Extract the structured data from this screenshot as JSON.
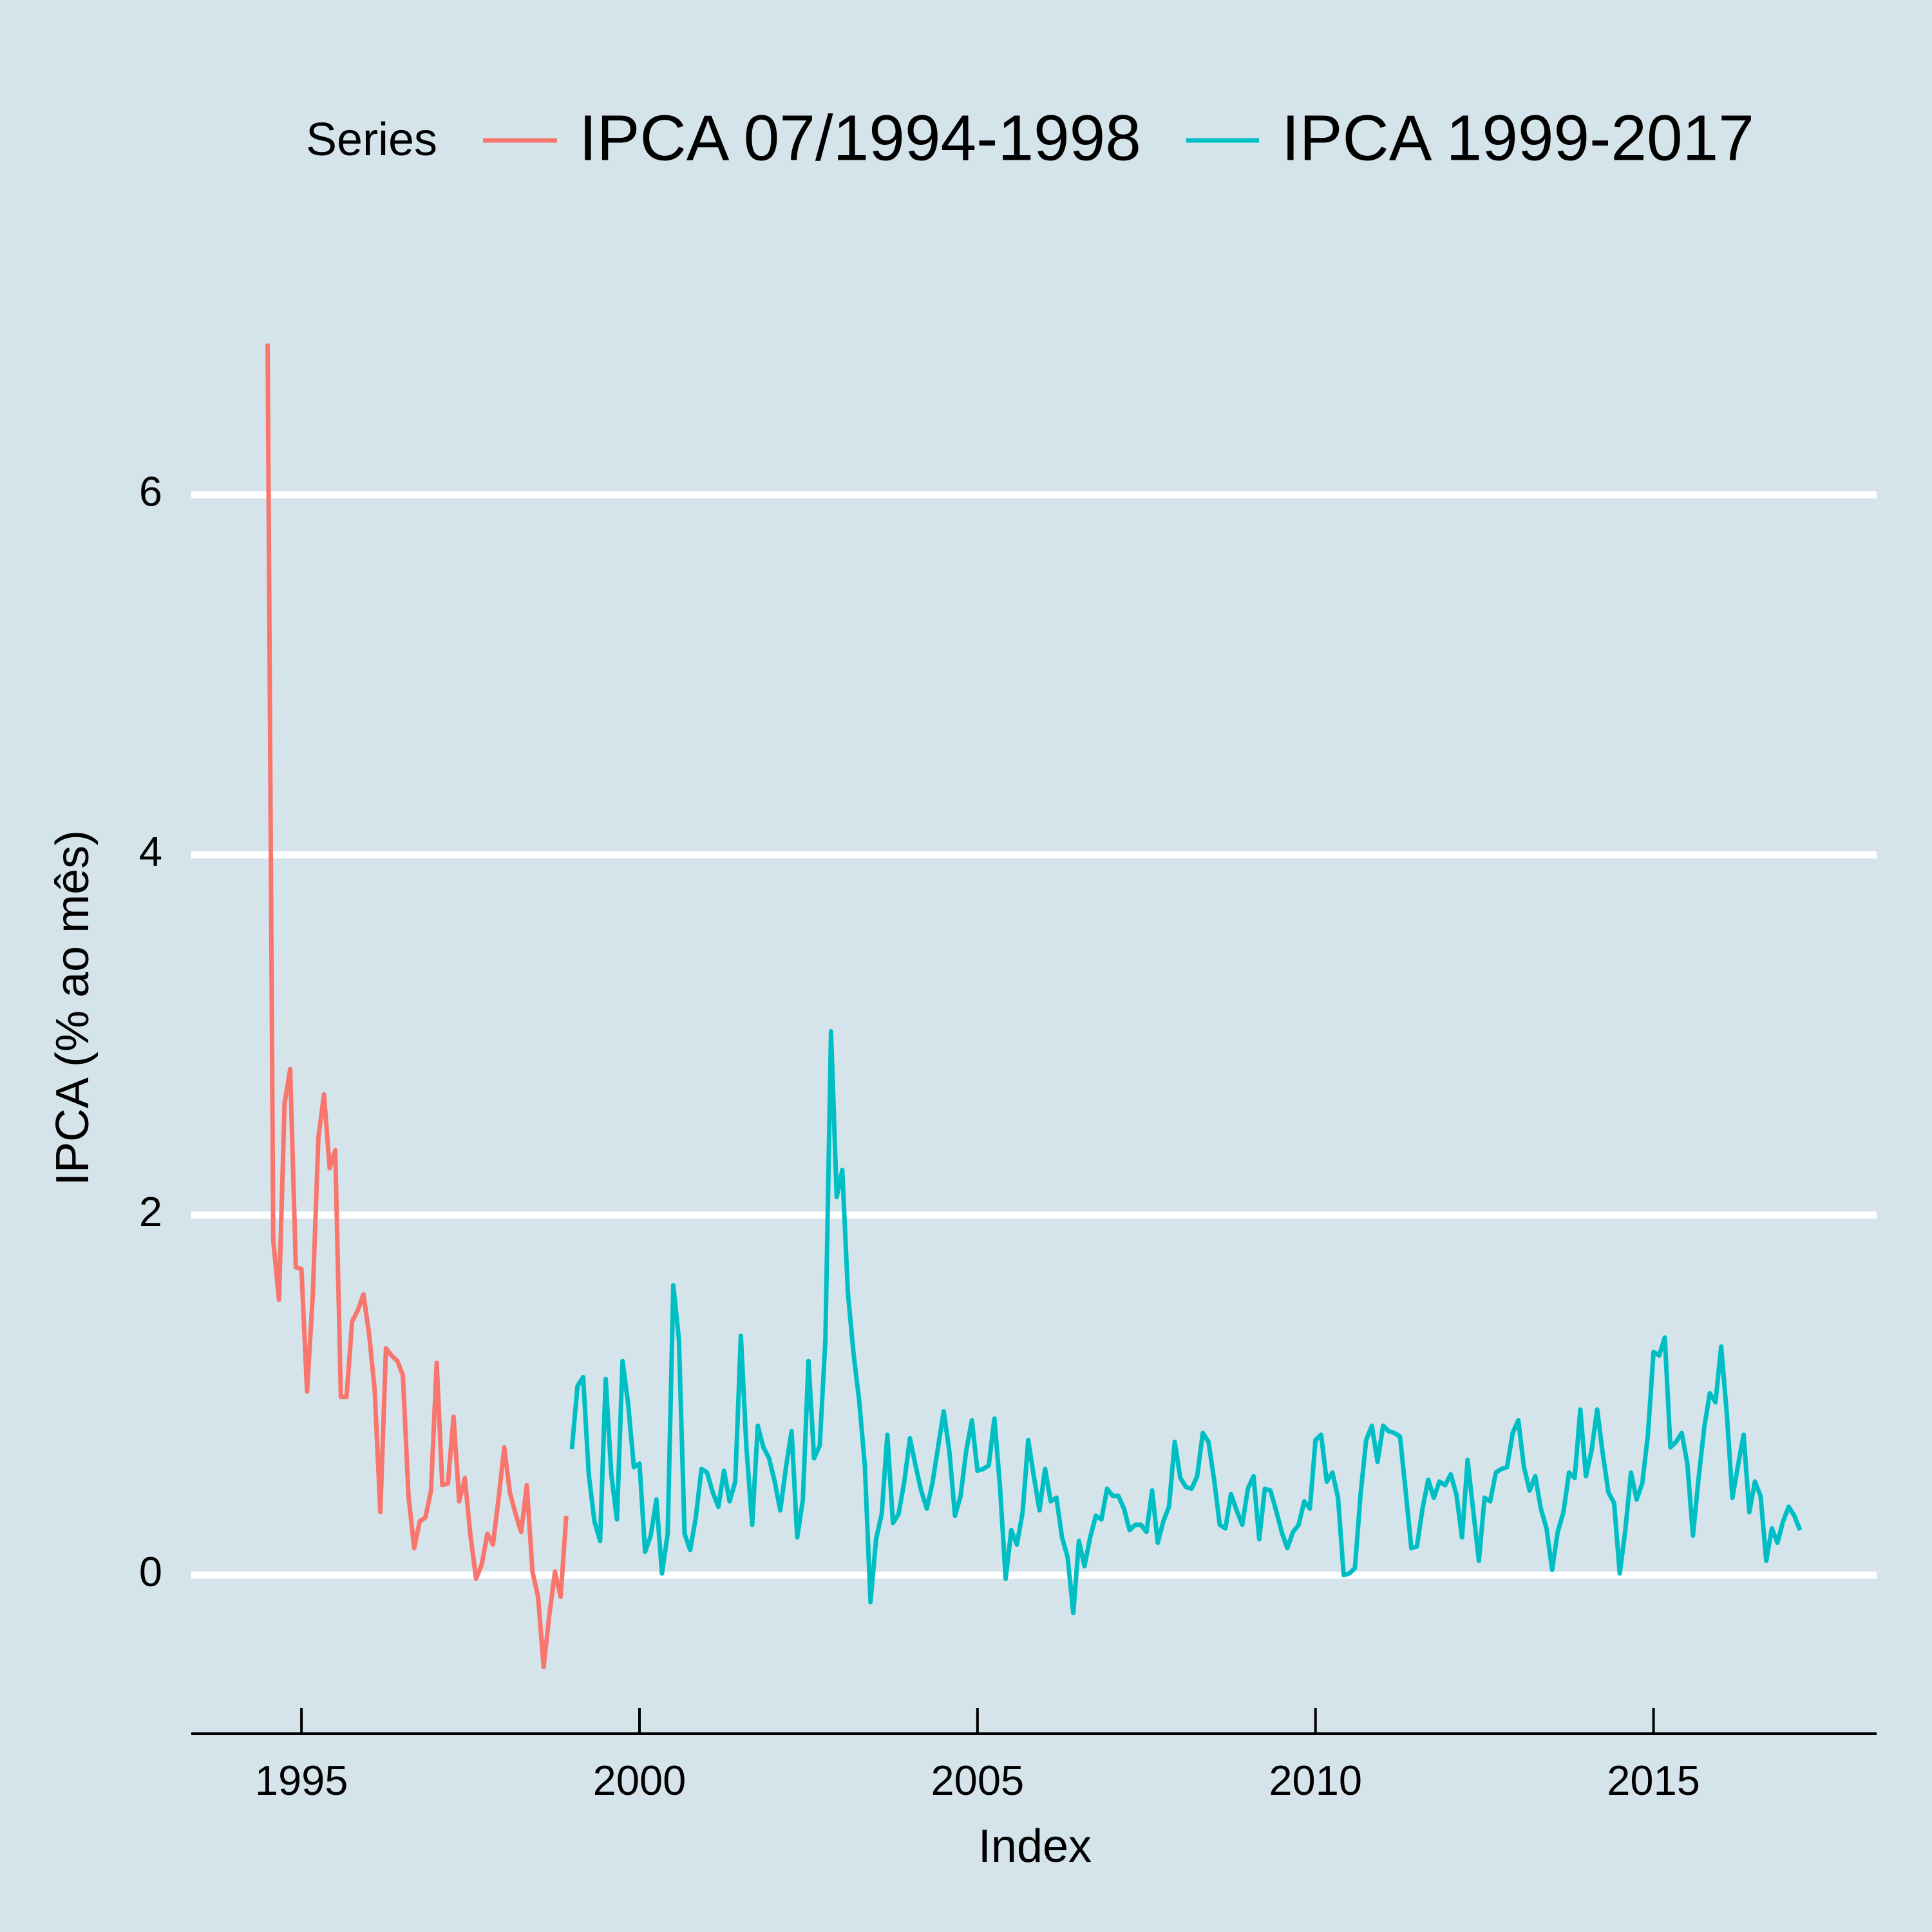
{
  "chart_data": {
    "type": "line",
    "x_label": "Index",
    "y_label": "IPCA (% ao mês)",
    "legend_title": "Series",
    "legend_position": "top",
    "xlim": [
      1993.37,
      2018.3
    ],
    "xticks": [
      1995,
      2000,
      2005,
      2010,
      2015
    ],
    "ylim": [
      -0.88,
      7.21
    ],
    "yticks": [
      0,
      2,
      4,
      6
    ],
    "grid": true,
    "series": [
      {
        "name": "IPCA 07/1994-1998",
        "color": "#f8766d",
        "x": [
          1994.5,
          1994.583,
          1994.667,
          1994.75,
          1994.833,
          1994.917,
          1995,
          1995.083,
          1995.167,
          1995.25,
          1995.333,
          1995.417,
          1995.5,
          1995.583,
          1995.667,
          1995.75,
          1995.833,
          1995.917,
          1996,
          1996.083,
          1996.167,
          1996.25,
          1996.333,
          1996.417,
          1996.5,
          1996.583,
          1996.667,
          1996.75,
          1996.833,
          1996.917,
          1997,
          1997.083,
          1997.167,
          1997.25,
          1997.333,
          1997.417,
          1997.5,
          1997.583,
          1997.667,
          1997.75,
          1997.833,
          1997.917,
          1998,
          1998.083,
          1998.167,
          1998.25,
          1998.333,
          1998.417,
          1998.5,
          1998.583,
          1998.667,
          1998.75,
          1998.833,
          1998.917
        ],
        "values": [
          6.84,
          1.86,
          1.53,
          2.62,
          2.81,
          1.71,
          1.7,
          1.02,
          1.55,
          2.43,
          2.67,
          2.26,
          2.36,
          0.99,
          0.99,
          1.41,
          1.47,
          1.56,
          1.34,
          1.03,
          0.35,
          1.26,
          1.22,
          1.19,
          1.11,
          0.44,
          0.15,
          0.3,
          0.32,
          0.47,
          1.18,
          0.5,
          0.51,
          0.88,
          0.41,
          0.54,
          0.22,
          -0.02,
          0.06,
          0.23,
          0.17,
          0.43,
          0.71,
          0.46,
          0.34,
          0.24,
          0.5,
          0.02,
          -0.12,
          -0.51,
          -0.22,
          0.02,
          -0.12,
          0.33
        ]
      },
      {
        "name": "IPCA 1999-2017",
        "color": "#00bfc4",
        "x": [
          1999,
          1999.083,
          1999.167,
          1999.25,
          1999.333,
          1999.417,
          1999.5,
          1999.583,
          1999.667,
          1999.75,
          1999.833,
          1999.917,
          2000,
          2000.083,
          2000.167,
          2000.25,
          2000.333,
          2000.417,
          2000.5,
          2000.583,
          2000.667,
          2000.75,
          2000.833,
          2000.917,
          2001,
          2001.083,
          2001.167,
          2001.25,
          2001.333,
          2001.417,
          2001.5,
          2001.583,
          2001.667,
          2001.75,
          2001.833,
          2001.917,
          2002,
          2002.083,
          2002.167,
          2002.25,
          2002.333,
          2002.417,
          2002.5,
          2002.583,
          2002.667,
          2002.75,
          2002.833,
          2002.917,
          2003,
          2003.083,
          2003.167,
          2003.25,
          2003.333,
          2003.417,
          2003.5,
          2003.583,
          2003.667,
          2003.75,
          2003.833,
          2003.917,
          2004,
          2004.083,
          2004.167,
          2004.25,
          2004.333,
          2004.417,
          2004.5,
          2004.583,
          2004.667,
          2004.75,
          2004.833,
          2004.917,
          2005,
          2005.083,
          2005.167,
          2005.25,
          2005.333,
          2005.417,
          2005.5,
          2005.583,
          2005.667,
          2005.75,
          2005.833,
          2005.917,
          2006,
          2006.083,
          2006.167,
          2006.25,
          2006.333,
          2006.417,
          2006.5,
          2006.583,
          2006.667,
          2006.75,
          2006.833,
          2006.917,
          2007,
          2007.083,
          2007.167,
          2007.25,
          2007.333,
          2007.417,
          2007.5,
          2007.583,
          2007.667,
          2007.75,
          2007.833,
          2007.917,
          2008,
          2008.083,
          2008.167,
          2008.25,
          2008.333,
          2008.417,
          2008.5,
          2008.583,
          2008.667,
          2008.75,
          2008.833,
          2008.917,
          2009,
          2009.083,
          2009.167,
          2009.25,
          2009.333,
          2009.417,
          2009.5,
          2009.583,
          2009.667,
          2009.75,
          2009.833,
          2009.917,
          2010,
          2010.083,
          2010.167,
          2010.25,
          2010.333,
          2010.417,
          2010.5,
          2010.583,
          2010.667,
          2010.75,
          2010.833,
          2010.917,
          2011,
          2011.083,
          2011.167,
          2011.25,
          2011.333,
          2011.417,
          2011.5,
          2011.583,
          2011.667,
          2011.75,
          2011.833,
          2011.917,
          2012,
          2012.083,
          2012.167,
          2012.25,
          2012.333,
          2012.417,
          2012.5,
          2012.583,
          2012.667,
          2012.75,
          2012.833,
          2012.917,
          2013,
          2013.083,
          2013.167,
          2013.25,
          2013.333,
          2013.417,
          2013.5,
          2013.583,
          2013.667,
          2013.75,
          2013.833,
          2013.917,
          2014,
          2014.083,
          2014.167,
          2014.25,
          2014.333,
          2014.417,
          2014.5,
          2014.583,
          2014.667,
          2014.75,
          2014.833,
          2014.917,
          2015,
          2015.083,
          2015.167,
          2015.25,
          2015.333,
          2015.417,
          2015.5,
          2015.583,
          2015.667,
          2015.75,
          2015.833,
          2015.917,
          2016,
          2016.083,
          2016.167,
          2016.25,
          2016.333,
          2016.417,
          2016.5,
          2016.583,
          2016.667,
          2016.75,
          2016.833,
          2016.917,
          2017,
          2017.083,
          2017.167
        ],
        "values": [
          0.7,
          1.05,
          1.1,
          0.56,
          0.3,
          0.19,
          1.09,
          0.56,
          0.31,
          1.19,
          0.95,
          0.6,
          0.62,
          0.13,
          0.22,
          0.42,
          0.01,
          0.23,
          1.61,
          1.31,
          0.23,
          0.14,
          0.32,
          0.59,
          0.57,
          0.46,
          0.38,
          0.58,
          0.41,
          0.52,
          1.33,
          0.7,
          0.28,
          0.83,
          0.71,
          0.65,
          0.52,
          0.36,
          0.6,
          0.8,
          0.21,
          0.42,
          1.19,
          0.65,
          0.72,
          1.31,
          3.02,
          2.1,
          2.25,
          1.57,
          1.23,
          0.97,
          0.61,
          -0.15,
          0.2,
          0.34,
          0.78,
          0.29,
          0.34,
          0.52,
          0.76,
          0.61,
          0.47,
          0.37,
          0.51,
          0.71,
          0.91,
          0.69,
          0.33,
          0.44,
          0.69,
          0.86,
          0.58,
          0.59,
          0.61,
          0.87,
          0.49,
          -0.02,
          0.25,
          0.17,
          0.35,
          0.75,
          0.55,
          0.36,
          0.59,
          0.41,
          0.43,
          0.21,
          0.1,
          -0.21,
          0.19,
          0.05,
          0.21,
          0.33,
          0.31,
          0.48,
          0.44,
          0.44,
          0.37,
          0.25,
          0.28,
          0.28,
          0.24,
          0.47,
          0.18,
          0.3,
          0.38,
          0.74,
          0.54,
          0.49,
          0.48,
          0.55,
          0.79,
          0.74,
          0.53,
          0.28,
          0.26,
          0.45,
          0.36,
          0.28,
          0.48,
          0.55,
          0.2,
          0.48,
          0.47,
          0.36,
          0.24,
          0.15,
          0.24,
          0.28,
          0.41,
          0.37,
          0.75,
          0.78,
          0.52,
          0.57,
          0.43,
          0.0,
          0.01,
          0.04,
          0.45,
          0.75,
          0.83,
          0.63,
          0.83,
          0.8,
          0.79,
          0.77,
          0.47,
          0.15,
          0.16,
          0.37,
          0.53,
          0.43,
          0.52,
          0.5,
          0.56,
          0.45,
          0.21,
          0.64,
          0.36,
          0.08,
          0.43,
          0.41,
          0.57,
          0.59,
          0.6,
          0.79,
          0.86,
          0.6,
          0.47,
          0.55,
          0.37,
          0.26,
          0.03,
          0.24,
          0.35,
          0.57,
          0.54,
          0.92,
          0.55,
          0.69,
          0.92,
          0.67,
          0.46,
          0.4,
          0.01,
          0.25,
          0.57,
          0.42,
          0.51,
          0.78,
          1.24,
          1.22,
          1.32,
          0.71,
          0.74,
          0.79,
          0.62,
          0.22,
          0.54,
          0.82,
          1.01,
          0.96,
          1.27,
          0.9,
          0.43,
          0.61,
          0.78,
          0.35,
          0.52,
          0.44,
          0.08,
          0.26,
          0.18,
          0.3,
          0.38,
          0.33,
          0.25
        ]
      }
    ]
  }
}
